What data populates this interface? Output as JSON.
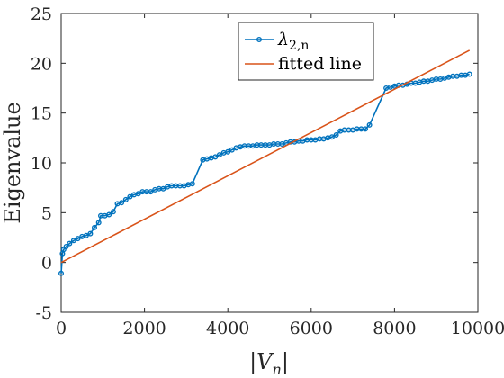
{
  "chart_data": {
    "type": "line",
    "title": "",
    "xlabel": "|V_n|",
    "ylabel": "Eigenvalue",
    "xlim": [
      0,
      10000
    ],
    "ylim": [
      -5,
      25
    ],
    "xticks": [
      0,
      2000,
      4000,
      6000,
      8000,
      10000
    ],
    "xtick_labels": [
      "0",
      "2000",
      "4000",
      "6000",
      "8000",
      "10000"
    ],
    "yticks": [
      -5,
      0,
      5,
      10,
      15,
      20,
      25
    ],
    "ytick_labels": [
      "-5",
      "0",
      "5",
      "10",
      "15",
      "20",
      "25"
    ],
    "grid": false,
    "legend_position": "top-center",
    "series": [
      {
        "name": "λ2,n",
        "color": "#0072BD",
        "marker": "circle",
        "points": [
          [
            0,
            -1.1
          ],
          [
            30,
            0.9
          ],
          [
            60,
            1.3
          ],
          [
            120,
            1.6
          ],
          [
            200,
            1.9
          ],
          [
            300,
            2.2
          ],
          [
            400,
            2.4
          ],
          [
            500,
            2.6
          ],
          [
            600,
            2.7
          ],
          [
            700,
            2.9
          ],
          [
            800,
            3.5
          ],
          [
            900,
            4.0
          ],
          [
            950,
            4.7
          ],
          [
            1050,
            4.7
          ],
          [
            1150,
            4.8
          ],
          [
            1250,
            5.1
          ],
          [
            1350,
            5.9
          ],
          [
            1450,
            6.0
          ],
          [
            1550,
            6.3
          ],
          [
            1650,
            6.6
          ],
          [
            1750,
            6.8
          ],
          [
            1850,
            6.9
          ],
          [
            1950,
            7.1
          ],
          [
            2050,
            7.1
          ],
          [
            2150,
            7.1
          ],
          [
            2250,
            7.3
          ],
          [
            2350,
            7.4
          ],
          [
            2450,
            7.4
          ],
          [
            2550,
            7.6
          ],
          [
            2650,
            7.7
          ],
          [
            2750,
            7.7
          ],
          [
            2850,
            7.7
          ],
          [
            2950,
            7.7
          ],
          [
            3050,
            7.8
          ],
          [
            3150,
            7.9
          ],
          [
            3400,
            10.3
          ],
          [
            3500,
            10.4
          ],
          [
            3600,
            10.5
          ],
          [
            3700,
            10.6
          ],
          [
            3800,
            10.8
          ],
          [
            3900,
            11.0
          ],
          [
            4000,
            11.1
          ],
          [
            4100,
            11.3
          ],
          [
            4200,
            11.5
          ],
          [
            4300,
            11.6
          ],
          [
            4400,
            11.7
          ],
          [
            4500,
            11.7
          ],
          [
            4600,
            11.7
          ],
          [
            4700,
            11.8
          ],
          [
            4800,
            11.8
          ],
          [
            4900,
            11.8
          ],
          [
            5000,
            11.8
          ],
          [
            5100,
            11.9
          ],
          [
            5200,
            11.9
          ],
          [
            5300,
            11.9
          ],
          [
            5400,
            12.0
          ],
          [
            5500,
            12.1
          ],
          [
            5600,
            12.1
          ],
          [
            5700,
            12.2
          ],
          [
            5800,
            12.2
          ],
          [
            5900,
            12.3
          ],
          [
            6000,
            12.3
          ],
          [
            6100,
            12.3
          ],
          [
            6200,
            12.4
          ],
          [
            6300,
            12.4
          ],
          [
            6400,
            12.5
          ],
          [
            6500,
            12.6
          ],
          [
            6600,
            12.8
          ],
          [
            6700,
            13.2
          ],
          [
            6800,
            13.3
          ],
          [
            6900,
            13.3
          ],
          [
            7000,
            13.3
          ],
          [
            7100,
            13.4
          ],
          [
            7200,
            13.4
          ],
          [
            7300,
            13.4
          ],
          [
            7400,
            13.8
          ],
          [
            7800,
            17.5
          ],
          [
            7900,
            17.6
          ],
          [
            8000,
            17.7
          ],
          [
            8100,
            17.8
          ],
          [
            8200,
            17.8
          ],
          [
            8300,
            17.9
          ],
          [
            8400,
            18.0
          ],
          [
            8500,
            18.0
          ],
          [
            8600,
            18.1
          ],
          [
            8700,
            18.2
          ],
          [
            8800,
            18.2
          ],
          [
            8900,
            18.3
          ],
          [
            9000,
            18.4
          ],
          [
            9100,
            18.4
          ],
          [
            9200,
            18.5
          ],
          [
            9300,
            18.6
          ],
          [
            9400,
            18.7
          ],
          [
            9500,
            18.7
          ],
          [
            9600,
            18.8
          ],
          [
            9700,
            18.8
          ],
          [
            9800,
            18.9
          ]
        ]
      },
      {
        "name": "fitted line",
        "color": "#D95319",
        "marker": "none",
        "points": [
          [
            0,
            0.0
          ],
          [
            9800,
            21.3
          ]
        ]
      }
    ]
  }
}
